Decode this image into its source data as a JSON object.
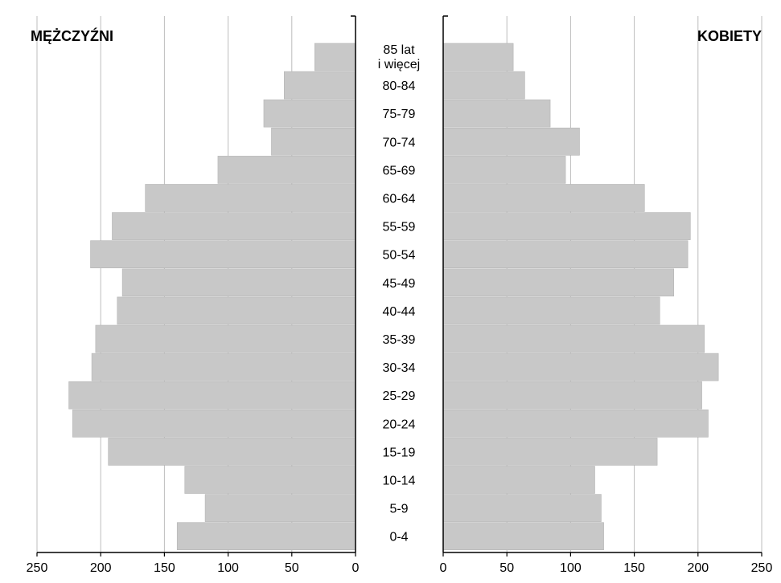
{
  "chart_data": {
    "type": "bar",
    "orientation": "horizontal-pyramid",
    "left_title": "MĘŻCZYŹNI",
    "right_title": "KOBIETY",
    "categories": [
      "0-4",
      "5-9",
      "10-14",
      "15-19",
      "20-24",
      "25-29",
      "30-34",
      "35-39",
      "40-44",
      "45-49",
      "50-54",
      "55-59",
      "60-64",
      "65-69",
      "70-74",
      "75-79",
      "80-84",
      "85 lat i więcej"
    ],
    "category_label_lines": [
      [
        "0-4"
      ],
      [
        "5-9"
      ],
      [
        "10-14"
      ],
      [
        "15-19"
      ],
      [
        "20-24"
      ],
      [
        "25-29"
      ],
      [
        "30-34"
      ],
      [
        "35-39"
      ],
      [
        "40-44"
      ],
      [
        "45-49"
      ],
      [
        "50-54"
      ],
      [
        "55-59"
      ],
      [
        "60-64"
      ],
      [
        "65-69"
      ],
      [
        "70-74"
      ],
      [
        "75-79"
      ],
      [
        "80-84"
      ],
      [
        "85 lat",
        "i więcej"
      ]
    ],
    "series": [
      {
        "name": "MĘŻCZYŹNI",
        "values": [
          140,
          118,
          134,
          194,
          222,
          225,
          207,
          204,
          187,
          183,
          208,
          191,
          165,
          108,
          66,
          72,
          56,
          32
        ]
      },
      {
        "name": "KOBIETY",
        "values": [
          126,
          124,
          119,
          168,
          208,
          203,
          216,
          205,
          170,
          181,
          192,
          194,
          158,
          96,
          107,
          84,
          64,
          55
        ]
      }
    ],
    "xlim": [
      0,
      250
    ],
    "x_ticks": [
      "0",
      "50",
      "100",
      "150",
      "200",
      "250"
    ],
    "grid": true,
    "colors": {
      "bar": "#c8c8c8",
      "bar_edge": "#b4b4b4",
      "grid": "#bdbdbd",
      "axis": "#000000"
    }
  }
}
